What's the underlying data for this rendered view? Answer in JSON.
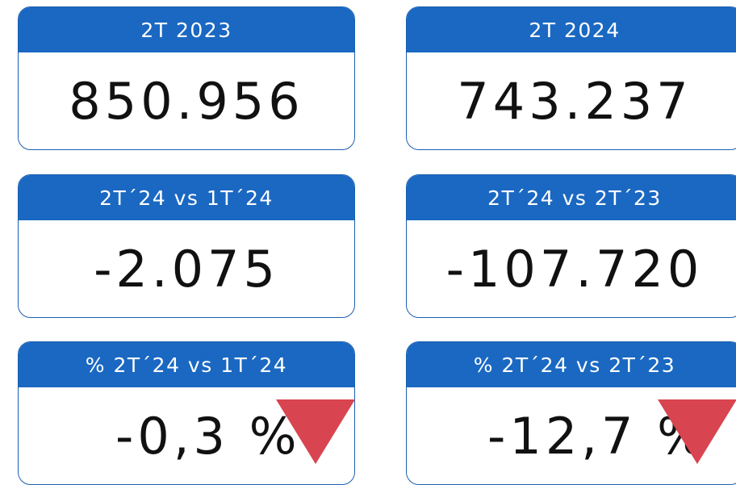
{
  "cards": [
    {
      "title": "2T 2023",
      "value": "850.956"
    },
    {
      "title": "2T 2024",
      "value": "743.237"
    },
    {
      "title": "2T´24 vs 1T´24",
      "value": "-2.075"
    },
    {
      "title": "2T´24 vs 2T´23",
      "value": "-107.720"
    },
    {
      "title": "% 2T´24 vs 1T´24",
      "value": "-0,3 %"
    },
    {
      "title": "% 2T´24 vs 2T´23",
      "value": "-12,7 %"
    }
  ]
}
